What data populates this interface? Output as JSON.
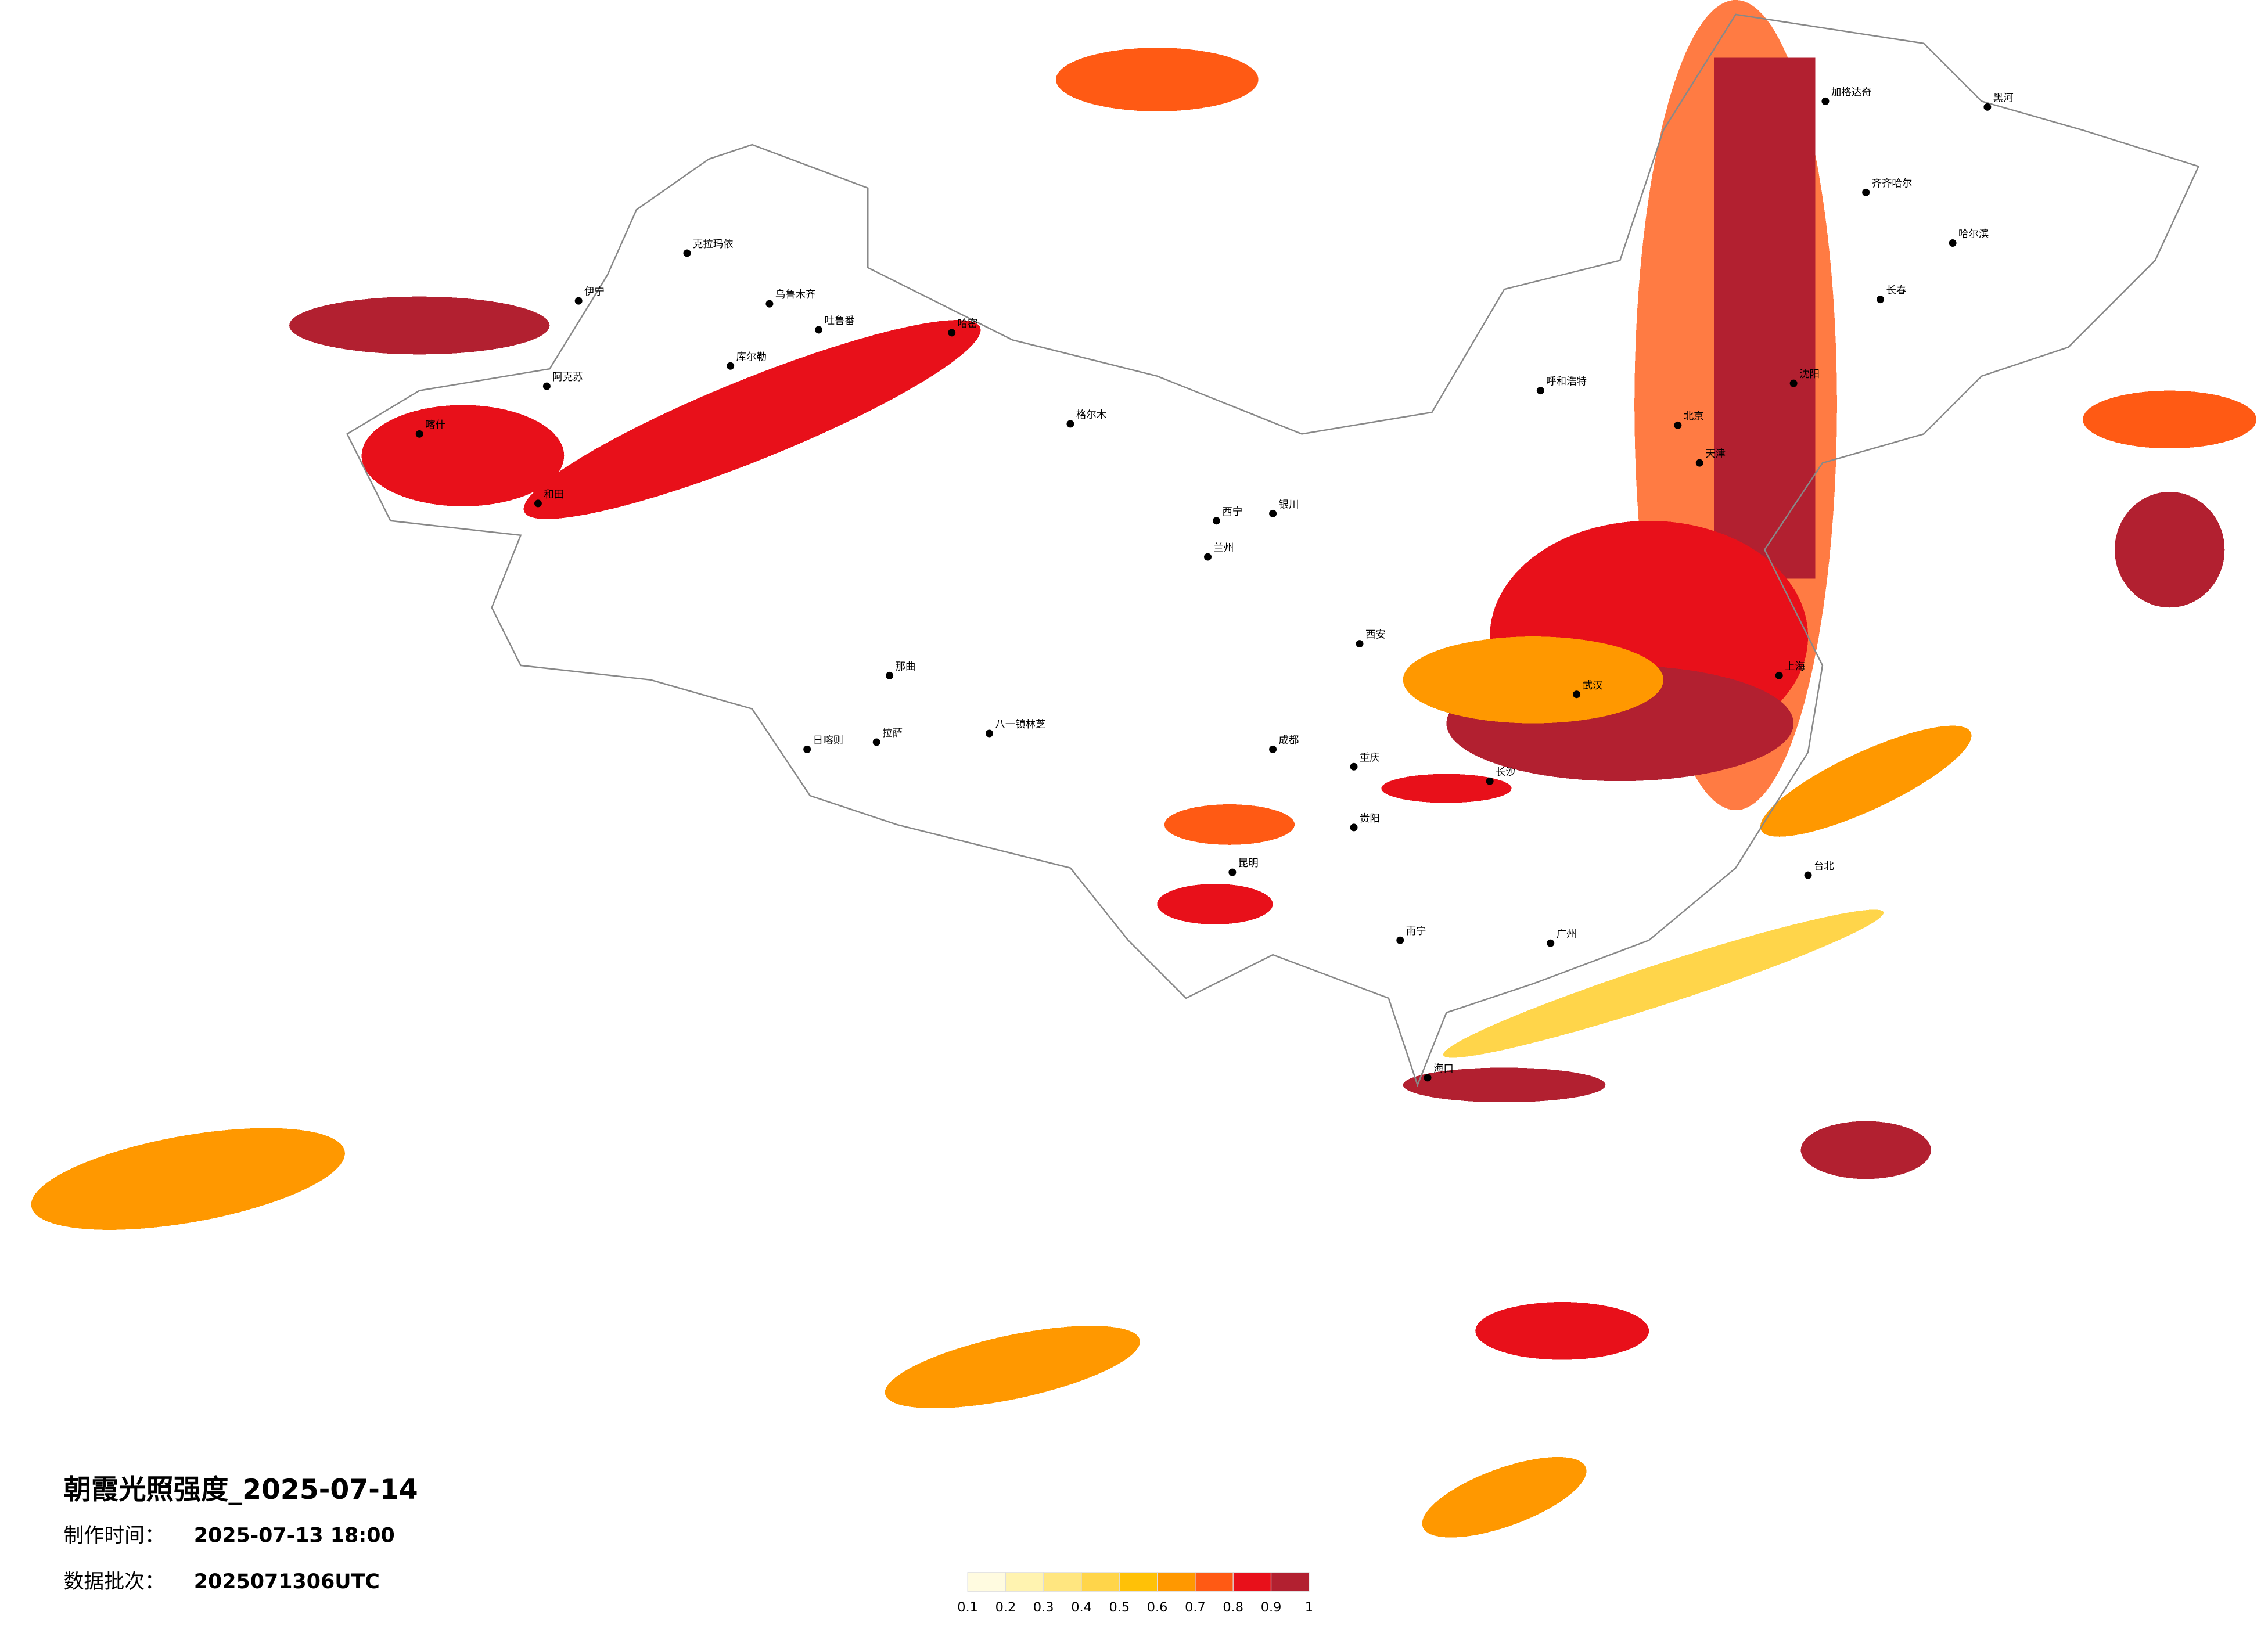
{
  "header": {
    "title": "朝霞光照强度_2025-07-14",
    "made_label": "制作时间：",
    "made_value": "2025-07-13 18:00",
    "batch_label": "数据批次：",
    "batch_value": "2025071306UTC"
  },
  "legend": {
    "ticks": [
      0.1,
      0.2,
      0.3,
      0.4,
      0.5,
      0.6,
      0.7,
      0.8,
      0.9,
      1
    ],
    "colors": [
      "#fffbe0",
      "#fff3b0",
      "#ffe680",
      "#ffd54a",
      "#ffc107",
      "#ff9800",
      "#ff5a14",
      "#e8101a",
      "#b22030"
    ]
  },
  "cities": [
    "加格达奇",
    "黑河",
    "齐齐哈尔",
    "哈尔滨",
    "长春",
    "沈阳",
    "北京",
    "天津",
    "呼和浩特",
    "银川",
    "兰州",
    "西宁",
    "西安",
    "克拉玛依",
    "伊宁",
    "乌鲁木齐",
    "吐鲁番",
    "哈密",
    "库尔勒",
    "阿克苏",
    "喀什",
    "和田",
    "格尔木",
    "那曲",
    "拉萨",
    "日喀则",
    "八一镇林芝",
    "成都",
    "重庆",
    "贵阳",
    "昆明",
    "南宁",
    "长沙",
    "武汉",
    "上海",
    "广州",
    "台北",
    "海口"
  ]
}
